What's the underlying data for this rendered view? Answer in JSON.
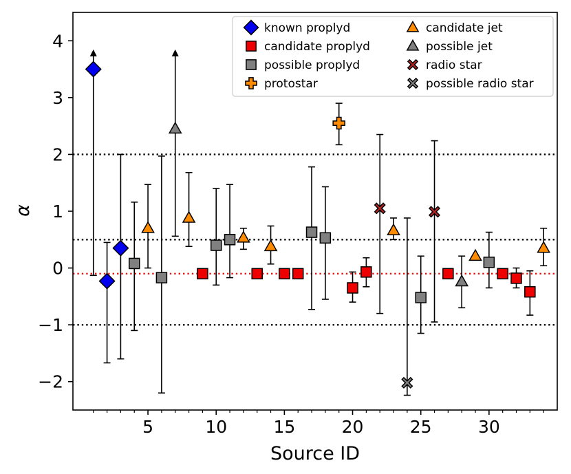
{
  "chart_data": {
    "type": "scatter",
    "title": "",
    "xlabel": "Source ID",
    "ylabel": "α",
    "xlim": [
      -0.5,
      35
    ],
    "ylim": [
      -2.5,
      4.5
    ],
    "xticks": [
      5,
      10,
      15,
      20,
      25,
      30
    ],
    "xticks_minor": [
      1,
      2,
      3,
      4,
      6,
      7,
      8,
      9,
      11,
      12,
      13,
      14,
      16,
      17,
      18,
      19,
      21,
      22,
      23,
      24,
      26,
      27,
      28,
      29,
      31,
      32,
      33,
      34
    ],
    "yticks": [
      -2,
      -1,
      0,
      1,
      2,
      3,
      4
    ],
    "ytick_labels": [
      "−2",
      "−1",
      "0",
      "1",
      "2",
      "3",
      "4"
    ],
    "xtick_labels": [
      "5",
      "10",
      "15",
      "20",
      "25",
      "30"
    ],
    "reference_lines": [
      {
        "y": 2.0,
        "color": "#000000",
        "style": "dotted"
      },
      {
        "y": 0.5,
        "color": "#000000",
        "style": "dotted"
      },
      {
        "y": -1.0,
        "color": "#000000",
        "style": "dotted"
      },
      {
        "y": -0.1,
        "color": "#e31a1c",
        "style": "dotted"
      }
    ],
    "categories": [
      {
        "key": "known",
        "label": "known proplyd",
        "marker": "diamond",
        "color": "#0000ee"
      },
      {
        "key": "candidate_proplyd",
        "label": "candidate proplyd",
        "marker": "square",
        "color": "#ee0000"
      },
      {
        "key": "possible_proplyd",
        "label": "possible proplyd",
        "marker": "square",
        "color": "#808080"
      },
      {
        "key": "protostar",
        "label": "protostar",
        "marker": "plus",
        "color": "#ff8c00"
      },
      {
        "key": "candidate_jet",
        "label": "candidate jet",
        "marker": "triangle",
        "color": "#ff8c00"
      },
      {
        "key": "possible_jet",
        "label": "possible jet",
        "marker": "triangle",
        "color": "#808080"
      },
      {
        "key": "radio_star",
        "label": "radio star",
        "marker": "x",
        "color": "#b22222"
      },
      {
        "key": "possible_radio_star",
        "label": "possible radio star",
        "marker": "x",
        "color": "#808080"
      }
    ],
    "points": [
      {
        "id": 1,
        "y": 3.5,
        "lo": -0.13,
        "hi": 3.75,
        "cat": "known",
        "upper_arrow": true
      },
      {
        "id": 2,
        "y": -0.23,
        "lo": -1.67,
        "hi": 0.45,
        "cat": "known"
      },
      {
        "id": 3,
        "y": 0.35,
        "lo": -1.6,
        "hi": 2.0,
        "cat": "known"
      },
      {
        "id": 4,
        "y": 0.08,
        "lo": -1.1,
        "hi": 1.16,
        "cat": "possible_proplyd"
      },
      {
        "id": 5,
        "y": 0.7,
        "lo": 0.0,
        "hi": 1.47,
        "cat": "candidate_jet"
      },
      {
        "id": 6,
        "y": -0.17,
        "lo": -2.2,
        "hi": 1.97,
        "cat": "possible_proplyd"
      },
      {
        "id": 7,
        "y": 2.45,
        "lo": 0.56,
        "hi": 3.75,
        "cat": "possible_jet",
        "upper_arrow": true
      },
      {
        "id": 8,
        "y": 0.88,
        "lo": 0.38,
        "hi": 1.68,
        "cat": "candidate_jet"
      },
      {
        "id": 9,
        "y": -0.1,
        "cat": "candidate_proplyd"
      },
      {
        "id": 10,
        "y": 0.4,
        "lo": -0.3,
        "hi": 1.4,
        "cat": "possible_proplyd"
      },
      {
        "id": 11,
        "y": 0.5,
        "lo": -0.17,
        "hi": 1.47,
        "cat": "possible_proplyd"
      },
      {
        "id": 12,
        "y": 0.53,
        "lo": 0.33,
        "hi": 0.7,
        "cat": "candidate_jet"
      },
      {
        "id": 13,
        "y": -0.1,
        "cat": "candidate_proplyd"
      },
      {
        "id": 14,
        "y": 0.38,
        "lo": 0.07,
        "hi": 0.74,
        "cat": "candidate_jet"
      },
      {
        "id": 15,
        "y": -0.1,
        "cat": "candidate_proplyd"
      },
      {
        "id": 16,
        "y": -0.1,
        "cat": "candidate_proplyd"
      },
      {
        "id": 17,
        "y": 0.63,
        "lo": -0.73,
        "hi": 1.78,
        "cat": "possible_proplyd"
      },
      {
        "id": 18,
        "y": 0.53,
        "lo": -0.55,
        "hi": 1.43,
        "cat": "possible_proplyd"
      },
      {
        "id": 19,
        "y": 2.55,
        "lo": 2.17,
        "hi": 2.9,
        "cat": "protostar"
      },
      {
        "id": 20,
        "y": -0.35,
        "lo": -0.6,
        "hi": -0.07,
        "cat": "candidate_proplyd"
      },
      {
        "id": 21,
        "y": -0.07,
        "lo": -0.33,
        "hi": 0.18,
        "cat": "candidate_proplyd"
      },
      {
        "id": 22,
        "y": 1.05,
        "lo": -0.8,
        "hi": 2.35,
        "cat": "radio_star"
      },
      {
        "id": 23,
        "y": 0.66,
        "lo": 0.5,
        "hi": 0.88,
        "cat": "candidate_jet"
      },
      {
        "id": 24,
        "y": -2.02,
        "lo": -2.24,
        "hi": 0.88,
        "cat": "possible_radio_star"
      },
      {
        "id": 25,
        "y": -0.52,
        "lo": -1.15,
        "hi": 0.21,
        "cat": "possible_proplyd"
      },
      {
        "id": 26,
        "y": 0.99,
        "lo": -0.95,
        "hi": 2.24,
        "cat": "radio_star"
      },
      {
        "id": 27,
        "y": -0.1,
        "cat": "candidate_proplyd"
      },
      {
        "id": 28,
        "y": -0.24,
        "lo": -0.7,
        "hi": 0.21,
        "cat": "possible_jet"
      },
      {
        "id": 29,
        "y": 0.21,
        "cat": "candidate_jet"
      },
      {
        "id": 30,
        "y": 0.1,
        "lo": -0.35,
        "hi": 0.63,
        "cat": "possible_proplyd"
      },
      {
        "id": 31,
        "y": -0.1,
        "cat": "candidate_proplyd"
      },
      {
        "id": 32,
        "y": -0.18,
        "lo": -0.35,
        "hi": 0.0,
        "cat": "candidate_proplyd"
      },
      {
        "id": 33,
        "y": -0.42,
        "lo": -0.83,
        "hi": -0.05,
        "cat": "candidate_proplyd"
      },
      {
        "id": 34,
        "y": 0.35,
        "lo": 0.04,
        "hi": 0.7,
        "cat": "candidate_jet"
      }
    ]
  }
}
